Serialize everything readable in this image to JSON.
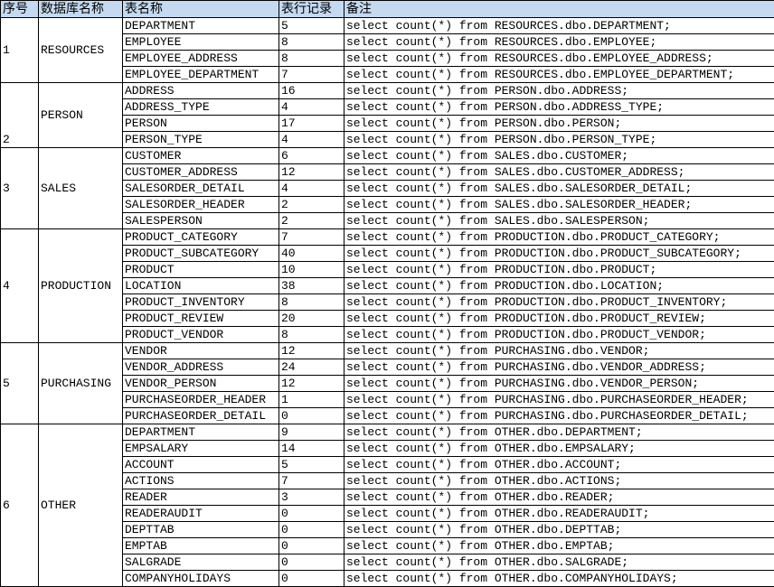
{
  "headers": [
    "序号",
    "数据库名称",
    "表名称",
    "表行记录",
    "备注"
  ],
  "groups": [
    {
      "seq": "1",
      "db": "RESOURCES",
      "seq_align": "middle",
      "tables": [
        {
          "name": "DEPARTMENT",
          "count": "5",
          "note": "select count(*)  from RESOURCES.dbo.DEPARTMENT;"
        },
        {
          "name": "EMPLOYEE",
          "count": "8",
          "note": "select count(*)  from RESOURCES.dbo.EMPLOYEE;"
        },
        {
          "name": "EMPLOYEE_ADDRESS",
          "count": "8",
          "note": "select count(*)  from RESOURCES.dbo.EMPLOYEE_ADDRESS;"
        },
        {
          "name": "EMPLOYEE_DEPARTMENT",
          "count": "7",
          "note": "select count(*)  from RESOURCES.dbo.EMPLOYEE_DEPARTMENT;"
        }
      ]
    },
    {
      "seq": "2",
      "db": "PERSON",
      "seq_align": "bottom",
      "tables": [
        {
          "name": "ADDRESS",
          "count": "16",
          "note": "select count(*)  from PERSON.dbo.ADDRESS;"
        },
        {
          "name": "ADDRESS_TYPE",
          "count": "4",
          "note": "select count(*)  from PERSON.dbo.ADDRESS_TYPE;"
        },
        {
          "name": "PERSON",
          "count": "17",
          "note": "select count(*)  from PERSON.dbo.PERSON;"
        },
        {
          "name": "PERSON_TYPE",
          "count": "4",
          "note": "select count(*)  from PERSON.dbo.PERSON_TYPE;"
        }
      ]
    },
    {
      "seq": "3",
      "db": "SALES",
      "seq_align": "middle",
      "tables": [
        {
          "name": "CUSTOMER",
          "count": "6",
          "note": "select count(*)  from SALES.dbo.CUSTOMER;"
        },
        {
          "name": "CUSTOMER_ADDRESS",
          "count": "12",
          "note": "select count(*)  from SALES.dbo.CUSTOMER_ADDRESS;"
        },
        {
          "name": "SALESORDER_DETAIL",
          "count": "4",
          "note": "select count(*)  from SALES.dbo.SALESORDER_DETAIL;"
        },
        {
          "name": "SALESORDER_HEADER",
          "count": "2",
          "note": "select count(*)  from SALES.dbo.SALESORDER_HEADER;"
        },
        {
          "name": "SALESPERSON",
          "count": "2",
          "note": "select count(*)  from SALES.dbo.SALESPERSON;"
        }
      ]
    },
    {
      "seq": "4",
      "db": "PRODUCTION",
      "seq_align": "middle",
      "tables": [
        {
          "name": "PRODUCT_CATEGORY",
          "count": "7",
          "note": "select count(*)  from PRODUCTION.dbo.PRODUCT_CATEGORY;"
        },
        {
          "name": "PRODUCT_SUBCATEGORY",
          "count": "40",
          "note": "select count(*)  from PRODUCTION.dbo.PRODUCT_SUBCATEGORY;"
        },
        {
          "name": "PRODUCT",
          "count": "10",
          "note": "select count(*)  from PRODUCTION.dbo.PRODUCT;"
        },
        {
          "name": "LOCATION",
          "count": "38",
          "note": "select count(*)  from PRODUCTION.dbo.LOCATION;"
        },
        {
          "name": "PRODUCT_INVENTORY",
          "count": "8",
          "note": "select count(*)  from PRODUCTION.dbo.PRODUCT_INVENTORY;"
        },
        {
          "name": "PRODUCT_REVIEW",
          "count": "20",
          "note": "select count(*)  from PRODUCTION.dbo.PRODUCT_REVIEW;"
        },
        {
          "name": "PRODUCT_VENDOR",
          "count": "8",
          "note": "select count(*)  from PRODUCTION.dbo.PRODUCT_VENDOR;"
        }
      ]
    },
    {
      "seq": "5",
      "db": "PURCHASING",
      "seq_align": "middle",
      "tables": [
        {
          "name": "VENDOR",
          "count": "12",
          "note": "select count(*)  from PURCHASING.dbo.VENDOR;"
        },
        {
          "name": "VENDOR_ADDRESS",
          "count": "24",
          "note": "select count(*)  from PURCHASING.dbo.VENDOR_ADDRESS;"
        },
        {
          "name": "VENDOR_PERSON",
          "count": "12",
          "note": "select count(*)  from PURCHASING.dbo.VENDOR_PERSON;"
        },
        {
          "name": "PURCHASEORDER_HEADER",
          "count": "1",
          "note": "select count(*)  from PURCHASING.dbo.PURCHASEORDER_HEADER;"
        },
        {
          "name": "PURCHASEORDER_DETAIL",
          "count": "0",
          "note": "select count(*)  from PURCHASING.dbo.PURCHASEORDER_DETAIL;"
        }
      ]
    },
    {
      "seq": "6",
      "db": "OTHER",
      "seq_align": "middle",
      "tables": [
        {
          "name": "DEPARTMENT",
          "count": "9",
          "note": "select count(*)  from OTHER.dbo.DEPARTMENT;"
        },
        {
          "name": "EMPSALARY",
          "count": "14",
          "note": "select count(*)  from OTHER.dbo.EMPSALARY;"
        },
        {
          "name": "ACCOUNT",
          "count": "5",
          "note": "select count(*)  from OTHER.dbo.ACCOUNT;"
        },
        {
          "name": "ACTIONS",
          "count": "7",
          "note": "select count(*)  from OTHER.dbo.ACTIONS;"
        },
        {
          "name": "READER",
          "count": "3",
          "note": "select count(*)  from OTHER.dbo.READER;"
        },
        {
          "name": "READERAUDIT",
          "count": "0",
          "note": "select count(*)  from OTHER.dbo.READERAUDIT;"
        },
        {
          "name": "DEPTTAB",
          "count": "0",
          "note": "select count(*)  from OTHER.dbo.DEPTTAB;"
        },
        {
          "name": "EMPTAB",
          "count": "0",
          "note": "select count(*)  from OTHER.dbo.EMPTAB;"
        },
        {
          "name": "SALGRADE",
          "count": "0",
          "note": "select count(*)  from OTHER.dbo.SALGRADE;"
        },
        {
          "name": "COMPANYHOLIDAYS",
          "count": "0",
          "note": "select count(*)  from OTHER.dbo.COMPANYHOLIDAYS;"
        }
      ]
    }
  ]
}
